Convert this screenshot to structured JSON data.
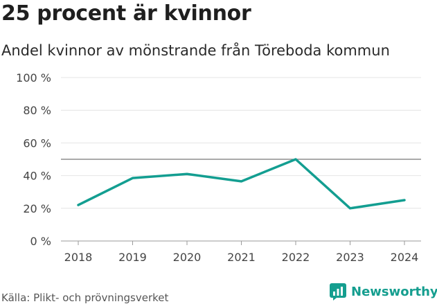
{
  "header": {
    "title": "25 procent är kvinnor",
    "subtitle": "Andel kvinnor av mönstrande från Töreboda kommun"
  },
  "footer": {
    "source": "Källa: Plikt- och prövningsverket",
    "brand": "Newsworthy"
  },
  "colors": {
    "line": "#139e91",
    "reference_line": "#777777",
    "grid": "#e4e4e4",
    "brand": "#159e8f"
  },
  "chart_data": {
    "type": "line",
    "title": "25 procent är kvinnor",
    "subtitle": "Andel kvinnor av mönstrande från Töreboda kommun",
    "x": [
      "2018",
      "2019",
      "2020",
      "2021",
      "2022",
      "2023",
      "2024"
    ],
    "series": [
      {
        "values": [
          22,
          38.5,
          41,
          36.5,
          50,
          20,
          25
        ]
      }
    ],
    "reference_line": 50,
    "y_ticks": [
      0,
      20,
      40,
      60,
      80,
      100
    ],
    "y_tick_labels": [
      "0 %",
      "20 %",
      "40 %",
      "60 %",
      "80 %",
      "100 %"
    ],
    "ylim": [
      0,
      100
    ],
    "grid": true,
    "legend": "none"
  }
}
